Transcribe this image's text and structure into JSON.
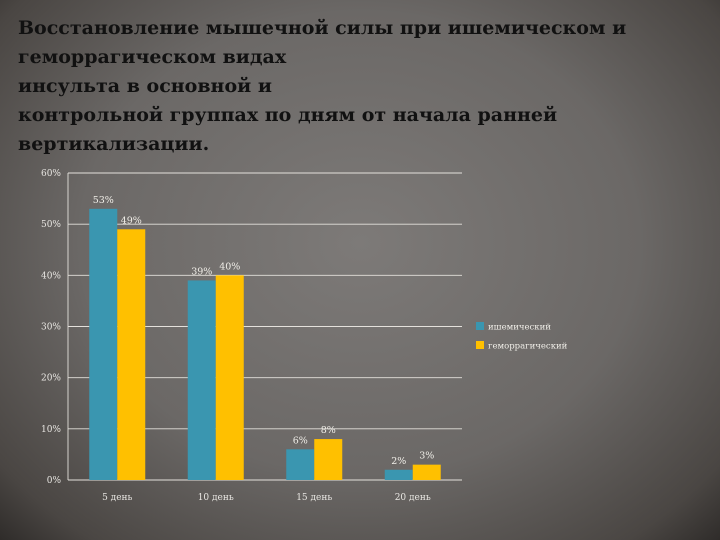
{
  "title": "Восстановление мышечной силы при ишемическом и\nгеморрагическом видах\nинсульта в основной и\n контрольной группах по дням от начала ранней\nвертикализации.",
  "chart_data": {
    "type": "bar",
    "categories": [
      "5 день",
      "10 день",
      "15 день",
      "20 день"
    ],
    "series": [
      {
        "name": "ишемический",
        "values": [
          53,
          39,
          6,
          2
        ],
        "labels": [
          "53%",
          "39%",
          "6%",
          "2%"
        ],
        "color": "#3a96b0"
      },
      {
        "name": "геморрагический",
        "values": [
          49,
          40,
          8,
          3
        ],
        "labels": [
          "49%",
          "40%",
          "8%",
          "3%"
        ],
        "color": "#ffc000"
      }
    ],
    "ylim": [
      0,
      60
    ],
    "yticks": [
      0,
      10,
      20,
      30,
      40,
      50,
      60
    ],
    "ytick_labels": [
      "0%",
      "10%",
      "20%",
      "30%",
      "40%",
      "50%",
      "60%"
    ],
    "grid": true,
    "legend": "right"
  }
}
